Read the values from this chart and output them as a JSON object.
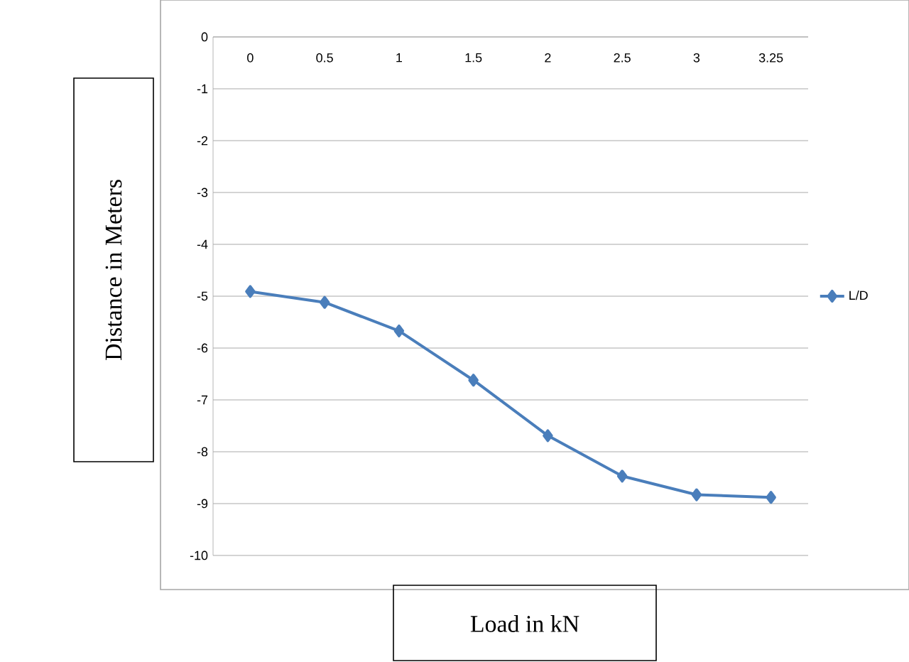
{
  "chart_data": {
    "type": "line",
    "xlabel": "Load in kN",
    "ylabel": "Distance in Meters",
    "categories": [
      "0",
      "0.5",
      "1",
      "1.5",
      "2",
      "2.5",
      "3",
      "3.25"
    ],
    "series": [
      {
        "name": "L/D",
        "color": "#4a7ebb",
        "values": [
          -4.91,
          -5.12,
          -5.67,
          -6.62,
          -7.69,
          -8.47,
          -8.83,
          -8.88
        ]
      }
    ],
    "ylim": [
      -10,
      0
    ],
    "yticks": [
      -10,
      -9,
      -8,
      -7,
      -6,
      -5,
      -4,
      -3,
      -2,
      -1,
      0
    ],
    "grid": "y",
    "legend": "right",
    "marker": "diamond",
    "line_style": "solid"
  }
}
